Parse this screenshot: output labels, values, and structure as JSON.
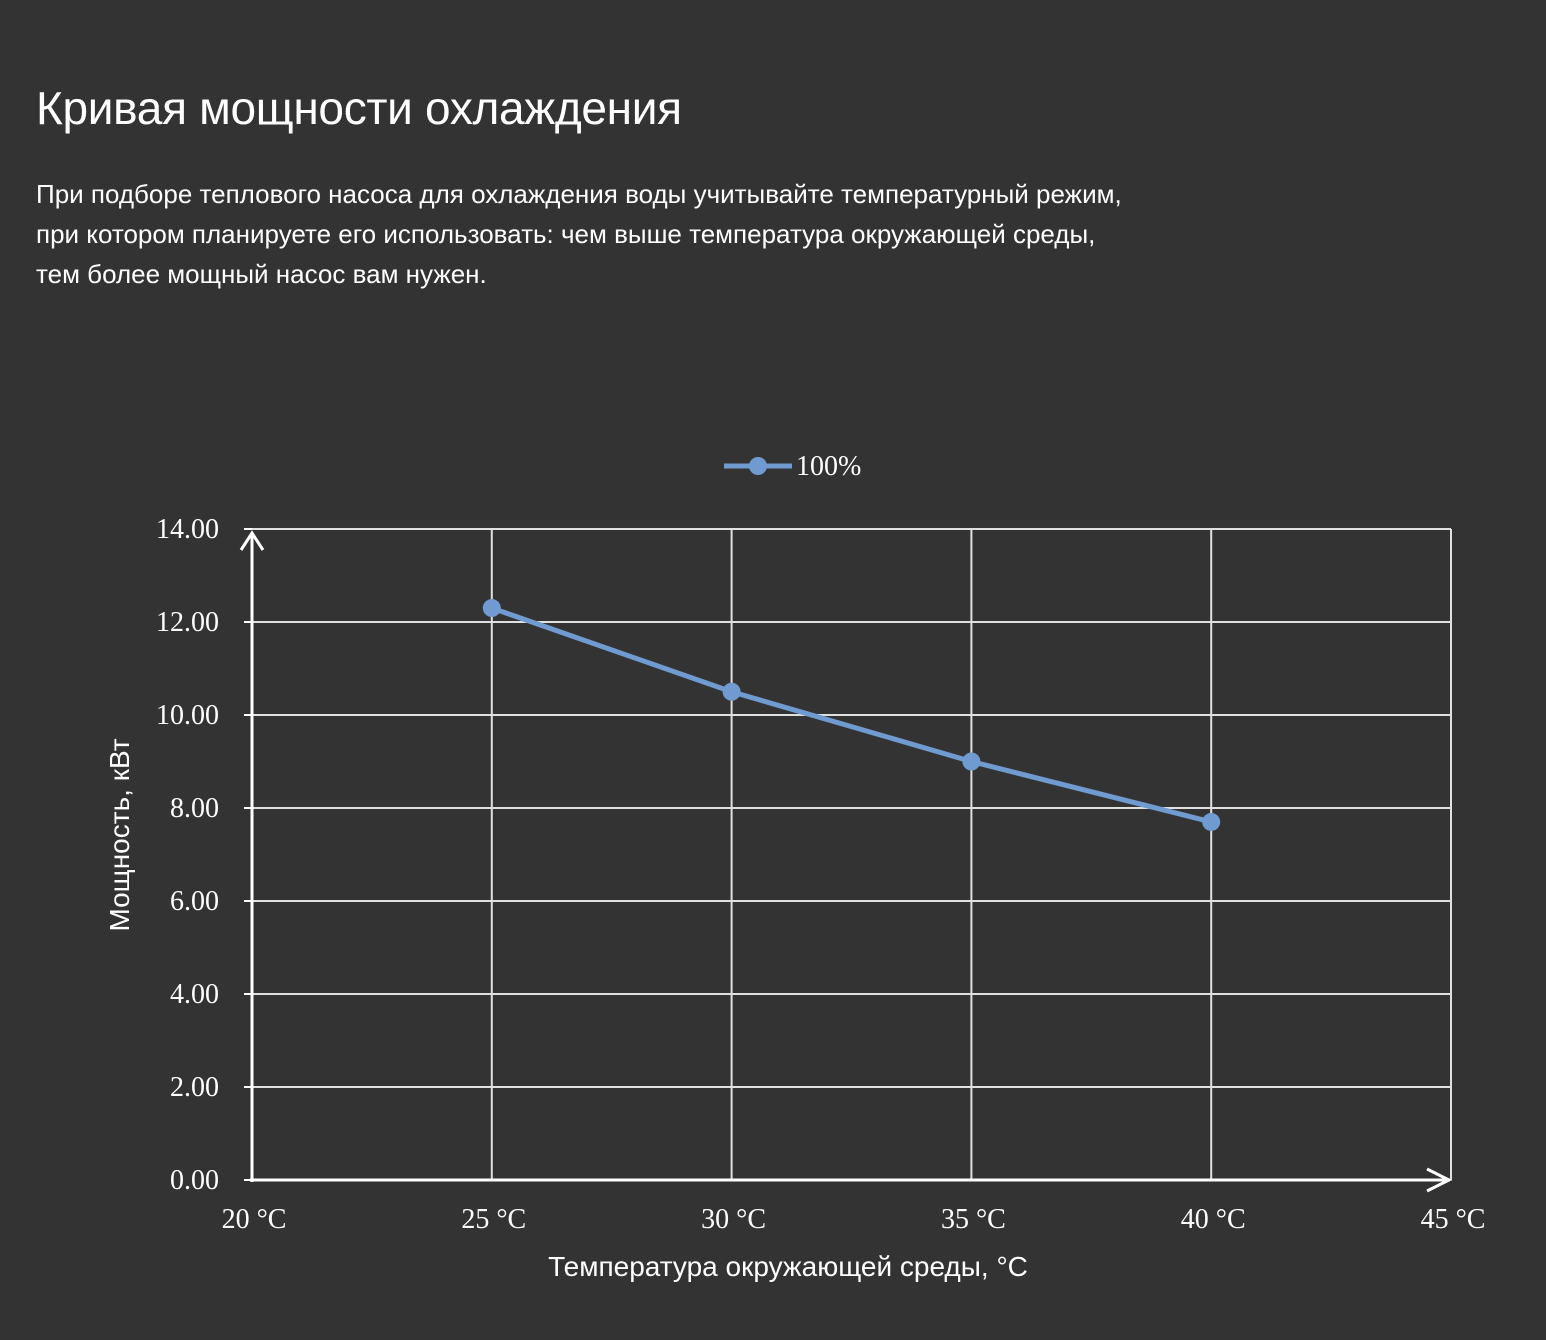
{
  "page": {
    "title": "Кривая мощности охлаждения",
    "description_lines": [
      "При подборе теплового насоса для охлаждения воды учитывайте температурный режим,",
      "при котором планируете его использовать: чем выше температура окружающей среды,",
      "тем более мощный насос вам нужен."
    ]
  },
  "colors": {
    "background": "#333333",
    "text": "#ffffff",
    "grid": "#e0e0e0",
    "series": "#6f9bd0"
  },
  "chart_data": {
    "type": "line",
    "x": [
      25,
      30,
      35,
      40
    ],
    "series": [
      {
        "name": "100%",
        "values": [
          12.3,
          10.5,
          9.0,
          7.7
        ]
      }
    ],
    "xlim": [
      20,
      45
    ],
    "ylim": [
      0,
      14
    ],
    "x_ticks": [
      20,
      25,
      30,
      35,
      40,
      45
    ],
    "x_tick_labels": [
      "20 °C",
      "25 °C",
      "30 °C",
      "35 °C",
      "40 °C",
      "45 °C"
    ],
    "y_ticks": [
      0,
      2,
      4,
      6,
      8,
      10,
      12,
      14
    ],
    "y_tick_labels": [
      "0.00",
      "2.00",
      "4.00",
      "6.00",
      "8.00",
      "10.00",
      "12.00",
      "14.00"
    ],
    "xlabel": "Температура окружающей среды, °C",
    "ylabel": "Мощность, кВт",
    "grid": true,
    "legend_position": "top-center",
    "markers": true
  }
}
